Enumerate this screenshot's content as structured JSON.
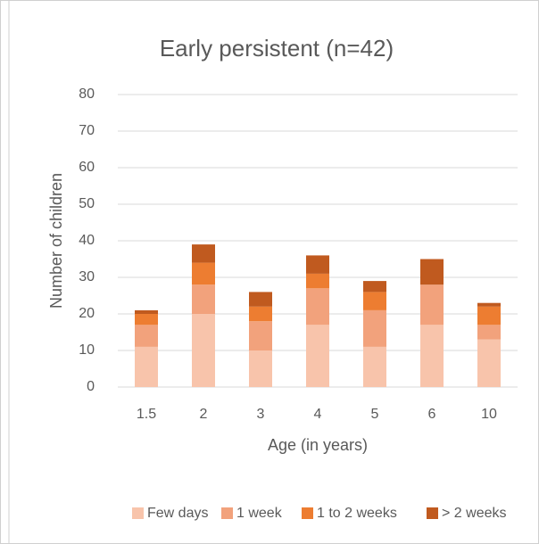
{
  "chart_data": {
    "type": "stacked_bar",
    "title": "Early persistent (n=42)",
    "x_label": "Age (in years)",
    "y_label": "Number of children",
    "categories": [
      "1.5",
      "2",
      "3",
      "4",
      "5",
      "6",
      "10"
    ],
    "series": [
      {
        "name": "Few days",
        "color": "#f8c4ab",
        "values": [
          11,
          20,
          10,
          17,
          11,
          17,
          13
        ]
      },
      {
        "name": "1 week",
        "color": "#f2a27c",
        "values": [
          6,
          8,
          8,
          10,
          10,
          11,
          4
        ]
      },
      {
        "name": "1 to 2 weeks",
        "color": "#ed7d31",
        "values": [
          3,
          6,
          4,
          4,
          5,
          0,
          5
        ]
      },
      {
        "name": "> 2 weeks",
        "color": "#c05a1f",
        "values": [
          1,
          5,
          4,
          5,
          3,
          7,
          1
        ]
      }
    ],
    "ylim": [
      0,
      80
    ],
    "yticks": [
      0,
      10,
      20,
      30,
      40,
      50,
      60,
      70,
      80
    ],
    "grid": true,
    "legend": "bottom"
  }
}
